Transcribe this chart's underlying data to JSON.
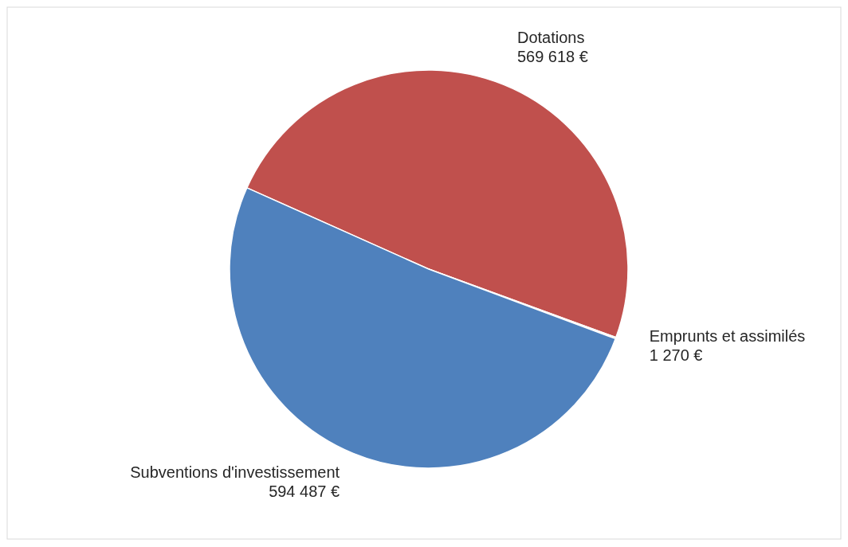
{
  "chart_data": {
    "type": "pie",
    "categories": [
      "Dotations",
      "Emprunts et assimilés",
      "Subventions d'investissement"
    ],
    "values": [
      569618,
      1270,
      594487
    ],
    "colors": [
      "#c0504d",
      "#9bbb59",
      "#4f81bd"
    ],
    "value_labels": [
      "569 618 €",
      "1 270 €",
      "594 487 €"
    ]
  }
}
